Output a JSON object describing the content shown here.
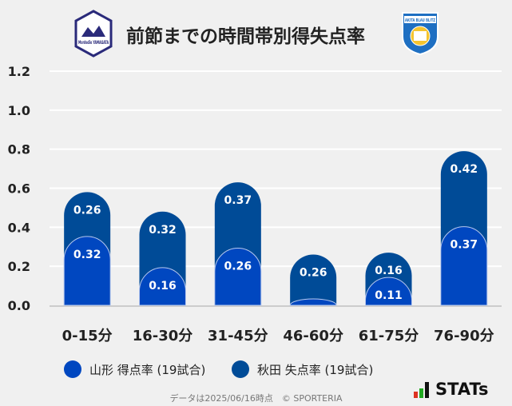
{
  "title": "前節までの時間帯別得失点率",
  "left_logo_text": "Montedio YAMAGATA",
  "right_logo_text": "AKITA BLAU BLITZ",
  "colors": {
    "yamagata": "#0047c0",
    "akita": "#004b97",
    "background": "#f0f0f0",
    "grid": "#ffffff"
  },
  "chart_data": {
    "type": "bar",
    "stacked": true,
    "title": "前節までの時間帯別得失点率",
    "categories": [
      "0-15分",
      "16-30分",
      "31-45分",
      "46-60分",
      "61-75分",
      "76-90分"
    ],
    "series": [
      {
        "name": "山形 得点率 (19試合)",
        "values": [
          0.32,
          0.16,
          0.26,
          0,
          0.11,
          0.37
        ],
        "labels": [
          "0.32",
          "0.16",
          "0.26",
          "",
          "0.11",
          "0.37"
        ]
      },
      {
        "name": "秋田 失点率 (19試合)",
        "values": [
          0.26,
          0.32,
          0.37,
          0.26,
          0.16,
          0.42
        ],
        "labels": [
          "0.26",
          "0.32",
          "0.37",
          "0.26",
          "0.16",
          "0.42"
        ]
      }
    ],
    "ylim": [
      0,
      1.2
    ],
    "yticks": [
      "0.0",
      "0.2",
      "0.4",
      "0.6",
      "0.8",
      "1.0",
      "1.2"
    ],
    "grid": true,
    "legend": "bottom"
  },
  "footer": "データは2025/06/16時点　© SPORTERIA",
  "brand": "STATs"
}
